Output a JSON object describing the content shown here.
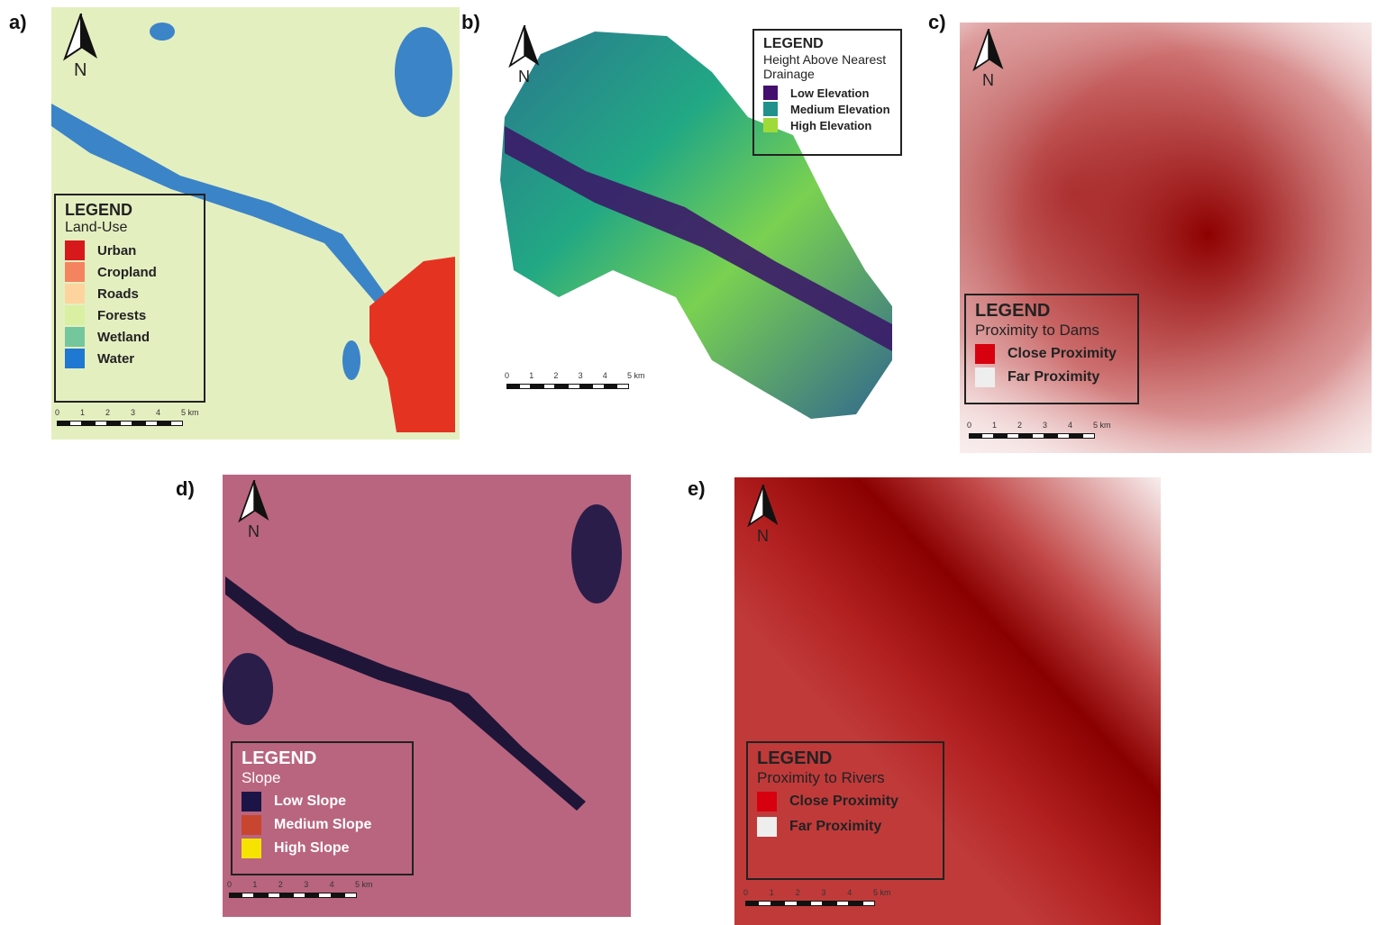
{
  "panels": [
    {
      "label": "a)",
      "north": "N",
      "legend": {
        "title": "LEGEND",
        "subtitle": "Land-Use",
        "items": [
          {
            "label": "Urban",
            "color": "#d7191c"
          },
          {
            "label": "Cropland",
            "color": "#f4845f"
          },
          {
            "label": "Roads",
            "color": "#fdd49e"
          },
          {
            "label": "Forests",
            "color": "#d9f0a3"
          },
          {
            "label": "Wetland",
            "color": "#74c69d"
          },
          {
            "label": "Water",
            "color": "#1f78d1"
          }
        ]
      },
      "scale": [
        "0",
        "1",
        "2",
        "3",
        "4",
        "5 km"
      ]
    },
    {
      "label": "b)",
      "north": "N",
      "legend": {
        "title": "LEGEND",
        "subtitle": "Height Above Nearest Drainage",
        "items": [
          {
            "label": "Low Elevation",
            "color": "#440e6e"
          },
          {
            "label": "Medium Elevation",
            "color": "#21918c"
          },
          {
            "label": "High Elevation",
            "color": "#a0da39"
          }
        ]
      },
      "scale": [
        "0",
        "1",
        "2",
        "3",
        "4",
        "5 km"
      ]
    },
    {
      "label": "c)",
      "north": "N",
      "legend": {
        "title": "LEGEND",
        "subtitle": "Proximity to Dams",
        "items": [
          {
            "label": "Close Proximity",
            "color": "#d7000f"
          },
          {
            "label": "Far Proximity",
            "color": "#eeeeee"
          }
        ]
      },
      "scale": [
        "0",
        "1",
        "2",
        "3",
        "4",
        "5 km"
      ]
    },
    {
      "label": "d)",
      "north": "N",
      "legend": {
        "title": "LEGEND",
        "subtitle": "Slope",
        "items": [
          {
            "label": "Low Slope",
            "color": "#1b1447"
          },
          {
            "label": "Medium Slope",
            "color": "#c8462f"
          },
          {
            "label": "High Slope",
            "color": "#f7e300"
          }
        ]
      },
      "scale": [
        "0",
        "1",
        "2",
        "3",
        "4",
        "5 km"
      ]
    },
    {
      "label": "e)",
      "north": "N",
      "legend": {
        "title": "LEGEND",
        "subtitle": "Proximity to Rivers",
        "items": [
          {
            "label": "Close Proximity",
            "color": "#d7000f"
          },
          {
            "label": "Far Proximity",
            "color": "#eeeeee"
          }
        ]
      },
      "scale": [
        "0",
        "1",
        "2",
        "3",
        "4",
        "5 km"
      ]
    }
  ]
}
